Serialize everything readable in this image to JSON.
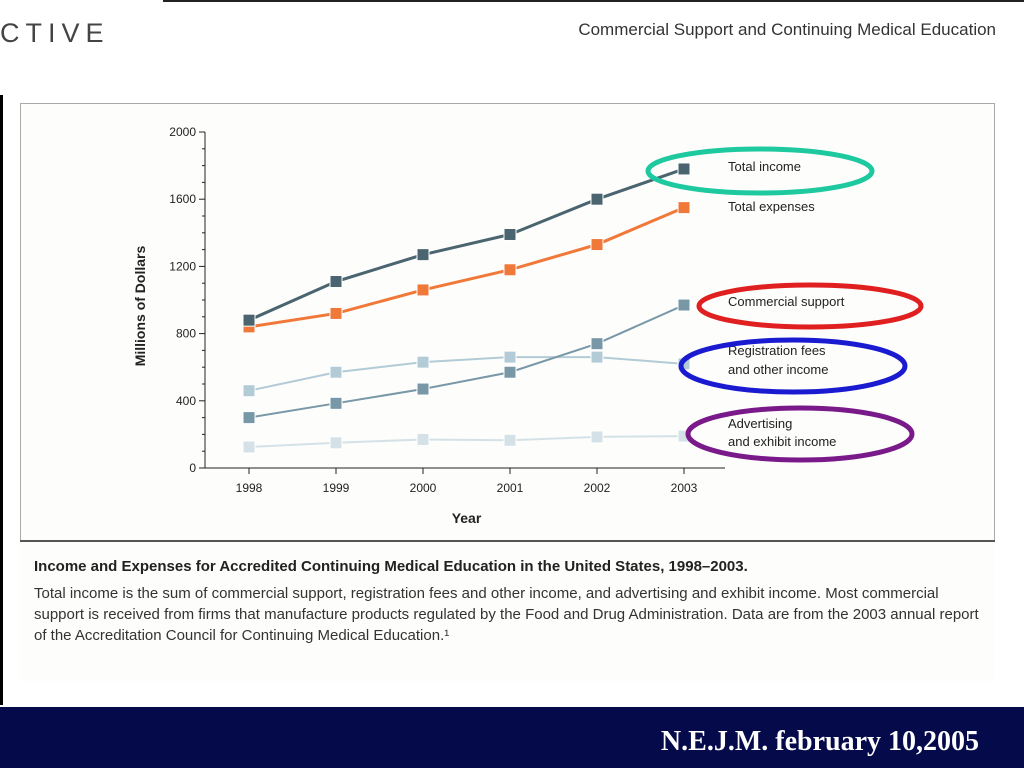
{
  "header": {
    "section_label": "CTIVE",
    "journal_heading": "Commercial Support and Continuing Medical Education"
  },
  "chart_data": {
    "type": "line",
    "ylabel": "Millions of Dollars",
    "xlabel": "Year",
    "x": [
      "1998",
      "1999",
      "2000",
      "2001",
      "2002",
      "2003"
    ],
    "ylim": [
      0,
      2000
    ],
    "y_ticks": [
      "0",
      "400",
      "800",
      "1200",
      "1600",
      "2000"
    ],
    "grid": false,
    "legend_placement": "right",
    "series": [
      {
        "name": "Total income",
        "values": [
          880,
          1110,
          1270,
          1390,
          1600,
          1780
        ],
        "color": "#4a6470",
        "label_lines": [
          "Total income"
        ],
        "highlight": "#1fc9a0"
      },
      {
        "name": "Total expenses",
        "values": [
          840,
          920,
          1060,
          1180,
          1330,
          1550
        ],
        "color": "#f07838",
        "label_lines": [
          "Total expenses"
        ],
        "highlight": ""
      },
      {
        "name": "Commercial support",
        "values": [
          300,
          385,
          470,
          570,
          740,
          970
        ],
        "color": "#7898a8",
        "label_lines": [
          "Commercial support"
        ],
        "highlight": "#e02020"
      },
      {
        "name": "Registration fees and other income",
        "values": [
          460,
          570,
          630,
          660,
          660,
          620
        ],
        "color": "#b2cbd6",
        "label_lines": [
          "Registration fees",
          "and other income"
        ],
        "highlight": "#1a1ad0"
      },
      {
        "name": "Advertising and exhibit income",
        "values": [
          125,
          150,
          170,
          165,
          185,
          190
        ],
        "color": "#d4e2e8",
        "label_lines": [
          "Advertising",
          "and exhibit income"
        ],
        "highlight": "#7a1a8a"
      }
    ]
  },
  "caption": {
    "title": "Income and Expenses for Accredited Continuing Medical Education in the United States, 1998–2003.",
    "text": "Total income is the sum of commercial support, registration fees and other income, and advertising and exhibit income. Most commercial support is received from firms that manufacture products regulated by the Food and Drug Administration. Data are from the 2003 annual report of the Accreditation Council for Continuing Medical Education.¹"
  },
  "footer": {
    "citation": "N.E.J.M. february 10,2005"
  }
}
